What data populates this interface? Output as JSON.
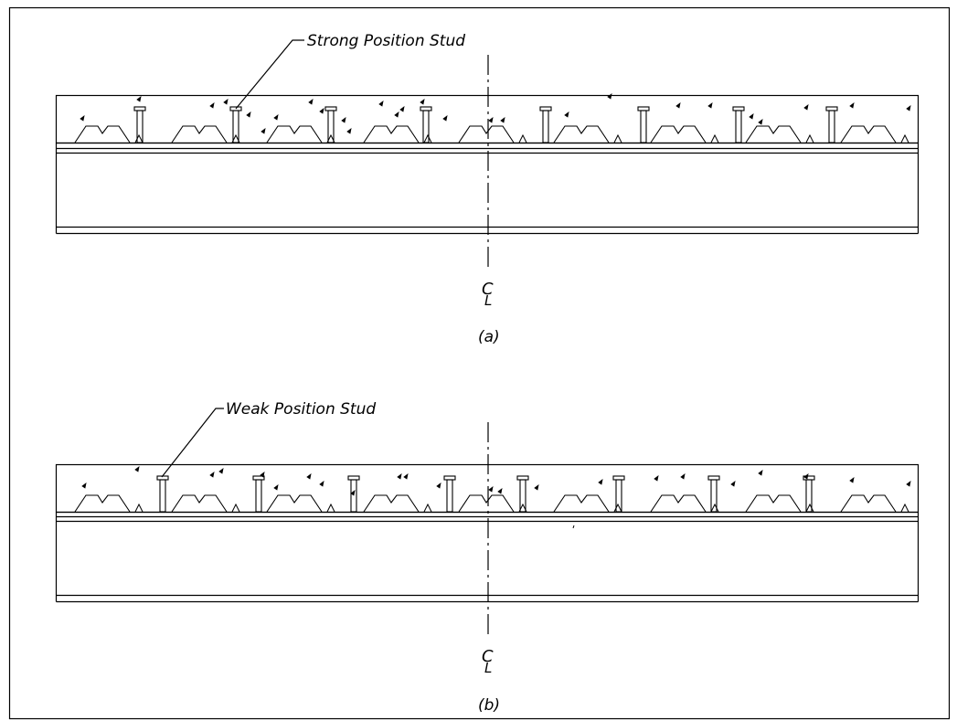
{
  "figure": {
    "panels": [
      {
        "id": "a",
        "caption": "(a)",
        "callout": "Strong Position Stud",
        "centerline_symbol": "C",
        "centerline_subscript": "L"
      },
      {
        "id": "b",
        "caption": "(b)",
        "callout": "Weak Position Stud",
        "centerline_symbol": "C",
        "centerline_subscript": "L"
      }
    ]
  }
}
